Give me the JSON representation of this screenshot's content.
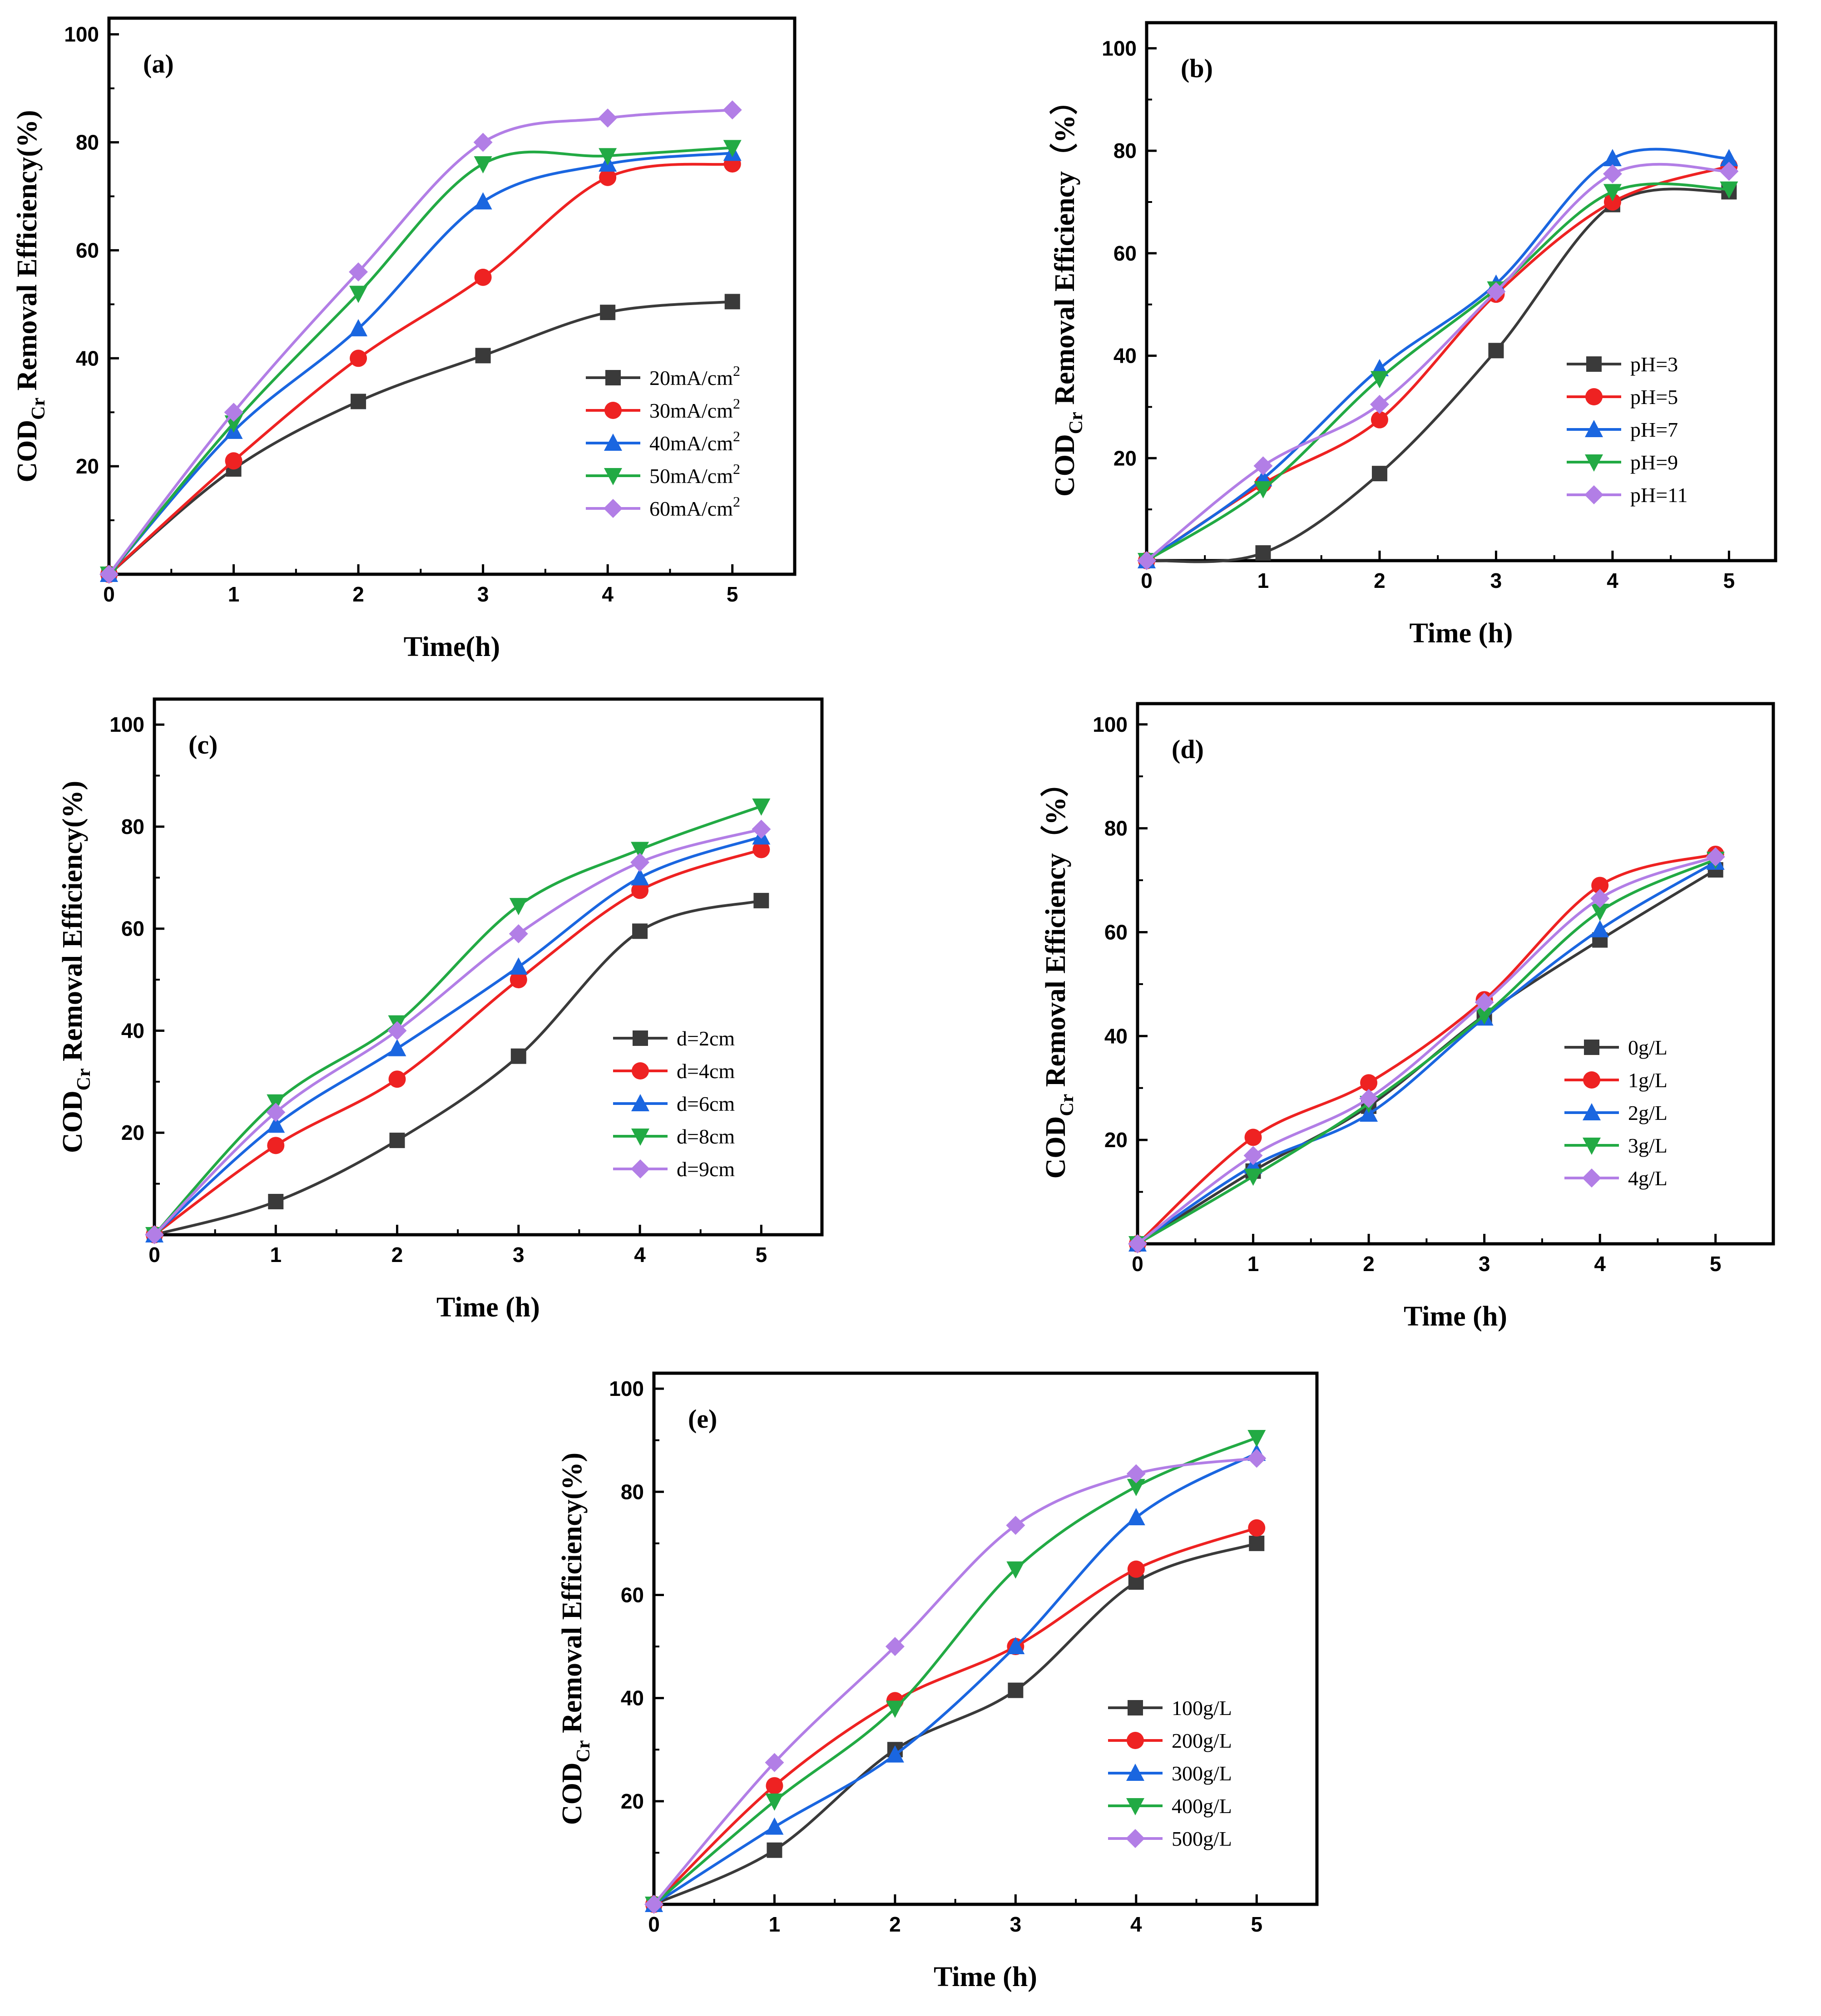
{
  "chart_data": [
    {
      "type": "line",
      "panel_label": "(a)",
      "xlabel": "Time(h)",
      "ylabel": "COD",
      "ylabel_sub": "Cr",
      "ylabel_tail": " Removal Efficiency(%)",
      "xlim": [
        0,
        5.5
      ],
      "ylim": [
        0,
        103
      ],
      "xticks": [
        "0",
        "1",
        "2",
        "3",
        "4",
        "5"
      ],
      "yticks": [
        "20",
        "40",
        "60",
        "80",
        "100"
      ],
      "legend_position": "lower-right",
      "x": [
        0,
        1,
        2,
        3,
        4,
        5
      ],
      "series": [
        {
          "name": "20mA/cm",
          "sup": "2",
          "color": "#3a3a3a",
          "marker": "square",
          "values": [
            0,
            19.5,
            32,
            40.5,
            48.5,
            50.5
          ]
        },
        {
          "name": "30mA/cm",
          "sup": "2",
          "color": "#ee2222",
          "marker": "circle",
          "values": [
            0,
            21,
            40,
            55,
            73.5,
            76
          ]
        },
        {
          "name": "40mA/cm",
          "sup": "2",
          "color": "#1a66e0",
          "marker": "triangle-up",
          "values": [
            0,
            26.5,
            45.5,
            69,
            76,
            78
          ]
        },
        {
          "name": "50mA/cm",
          "sup": "2",
          "color": "#22aa44",
          "marker": "triangle-down",
          "values": [
            0,
            28,
            52,
            76,
            77.5,
            79
          ]
        },
        {
          "name": "60mA/cm",
          "sup": "2",
          "color": "#b27ee6",
          "marker": "diamond",
          "values": [
            0,
            30,
            56,
            80,
            84.5,
            86
          ]
        }
      ]
    },
    {
      "type": "line",
      "panel_label": "(b)",
      "xlabel": "Time (h)",
      "ylabel": "COD",
      "ylabel_sub": "Cr",
      "ylabel_tail": " Removal Efficiency（%）",
      "xlim": [
        0,
        5.4
      ],
      "ylim": [
        0,
        105
      ],
      "xticks": [
        "0",
        "1",
        "2",
        "3",
        "4",
        "5"
      ],
      "yticks": [
        "20",
        "40",
        "60",
        "80",
        "100"
      ],
      "legend_position": "lower-right",
      "x": [
        0,
        1,
        2,
        3,
        4,
        5
      ],
      "series": [
        {
          "name": "pH=3",
          "color": "#3a3a3a",
          "marker": "square",
          "values": [
            0,
            1.5,
            17,
            41,
            69.5,
            72
          ]
        },
        {
          "name": "pH=5",
          "color": "#ee2222",
          "marker": "circle",
          "values": [
            0,
            15,
            27.5,
            52,
            70,
            77
          ]
        },
        {
          "name": "pH=7",
          "color": "#1a66e0",
          "marker": "triangle-up",
          "values": [
            0,
            16,
            37.5,
            54,
            78.5,
            78.5
          ]
        },
        {
          "name": "pH=9",
          "color": "#22aa44",
          "marker": "triangle-down",
          "values": [
            0,
            14,
            35.5,
            53,
            72,
            72.5
          ]
        },
        {
          "name": "pH=11",
          "color": "#b27ee6",
          "marker": "diamond",
          "values": [
            0,
            18.5,
            30.5,
            52.5,
            75.5,
            76
          ]
        }
      ]
    },
    {
      "type": "line",
      "panel_label": "(c)",
      "xlabel": "Time (h)",
      "ylabel": "COD",
      "ylabel_sub": "Cr",
      "ylabel_tail": " Removal Efficiency(%)",
      "xlim": [
        0,
        5.5
      ],
      "ylim": [
        0,
        105
      ],
      "xticks": [
        "0",
        "1",
        "2",
        "3",
        "4",
        "5"
      ],
      "yticks": [
        "20",
        "40",
        "60",
        "80",
        "100"
      ],
      "legend_position": "lower-right",
      "x": [
        0,
        1,
        2,
        3,
        4,
        5
      ],
      "series": [
        {
          "name": "d=2cm",
          "color": "#3a3a3a",
          "marker": "square",
          "values": [
            0,
            6.5,
            18.5,
            35,
            59.5,
            65.5
          ]
        },
        {
          "name": "d=4cm",
          "color": "#ee2222",
          "marker": "circle",
          "values": [
            0,
            17.5,
            30.5,
            50,
            67.5,
            75.5
          ]
        },
        {
          "name": "d=6cm",
          "color": "#1a66e0",
          "marker": "triangle-up",
          "values": [
            0,
            21.5,
            36.5,
            52.5,
            70,
            78
          ]
        },
        {
          "name": "d=8cm",
          "color": "#22aa44",
          "marker": "triangle-down",
          "values": [
            0,
            26,
            41.5,
            64.5,
            75.5,
            84
          ]
        },
        {
          "name": "d=9cm",
          "color": "#b27ee6",
          "marker": "diamond",
          "values": [
            0,
            24,
            40,
            59,
            73,
            79.5
          ]
        }
      ]
    },
    {
      "type": "line",
      "panel_label": "(d)",
      "xlabel": "Time (h)",
      "ylabel": "COD",
      "ylabel_sub": "Cr",
      "ylabel_tail": " Removal Efficiency（%）",
      "xlim": [
        0,
        5.5
      ],
      "ylim": [
        0,
        104
      ],
      "xticks": [
        "0",
        "1",
        "2",
        "3",
        "4",
        "5"
      ],
      "yticks": [
        "20",
        "40",
        "60",
        "80",
        "100"
      ],
      "legend_position": "lower-right",
      "x": [
        0,
        1,
        2,
        3,
        4,
        5
      ],
      "series": [
        {
          "name": "0g/L",
          "color": "#3a3a3a",
          "marker": "square",
          "values": [
            0,
            14,
            26.5,
            44,
            58.5,
            72
          ]
        },
        {
          "name": "1g/L",
          "color": "#ee2222",
          "marker": "circle",
          "values": [
            0,
            20.5,
            31,
            47,
            69,
            75
          ]
        },
        {
          "name": "2g/L",
          "color": "#1a66e0",
          "marker": "triangle-up",
          "values": [
            0,
            15,
            25,
            43.5,
            60.5,
            73.5
          ]
        },
        {
          "name": "3g/L",
          "color": "#22aa44",
          "marker": "triangle-down",
          "values": [
            0,
            13,
            27,
            44,
            64,
            74
          ]
        },
        {
          "name": "4g/L",
          "color": "#b27ee6",
          "marker": "diamond",
          "values": [
            0,
            17,
            28,
            46.5,
            66.5,
            74.5
          ]
        }
      ]
    },
    {
      "type": "line",
      "panel_label": "(e)",
      "xlabel": "Time (h)",
      "ylabel": "COD",
      "ylabel_sub": "Cr",
      "ylabel_tail": " Removal Efficiency(%)",
      "xlim": [
        0,
        5.5
      ],
      "ylim": [
        0,
        103
      ],
      "xticks": [
        "0",
        "1",
        "2",
        "3",
        "4",
        "5"
      ],
      "yticks": [
        "20",
        "40",
        "60",
        "80",
        "100"
      ],
      "legend_position": "lower-right",
      "x": [
        0,
        1,
        2,
        3,
        4,
        5
      ],
      "series": [
        {
          "name": "100g/L",
          "color": "#3a3a3a",
          "marker": "square",
          "values": [
            0,
            10.5,
            30,
            41.5,
            62.5,
            70
          ]
        },
        {
          "name": "200g/L",
          "color": "#ee2222",
          "marker": "circle",
          "values": [
            0,
            23,
            39.5,
            50,
            65,
            73
          ]
        },
        {
          "name": "300g/L",
          "color": "#1a66e0",
          "marker": "triangle-up",
          "values": [
            0,
            15,
            29,
            50,
            75,
            87.5
          ]
        },
        {
          "name": "400g/L",
          "color": "#22aa44",
          "marker": "triangle-down",
          "values": [
            0,
            20,
            38,
            65,
            81,
            90.5
          ]
        },
        {
          "name": "500g/L",
          "color": "#b27ee6",
          "marker": "diamond",
          "values": [
            0,
            27.5,
            50,
            73.5,
            83.5,
            86.5
          ]
        }
      ]
    }
  ]
}
